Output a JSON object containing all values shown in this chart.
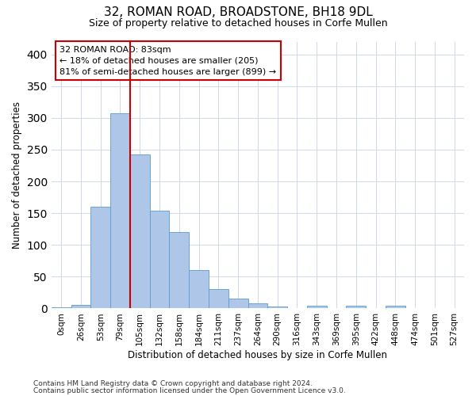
{
  "title": "32, ROMAN ROAD, BROADSTONE, BH18 9DL",
  "subtitle": "Size of property relative to detached houses in Corfe Mullen",
  "xlabel": "Distribution of detached houses by size in Corfe Mullen",
  "ylabel": "Number of detached properties",
  "footnote1": "Contains HM Land Registry data © Crown copyright and database right 2024.",
  "footnote2": "Contains public sector information licensed under the Open Government Licence v3.0.",
  "bar_labels": [
    "0sqm",
    "26sqm",
    "53sqm",
    "79sqm",
    "105sqm",
    "132sqm",
    "158sqm",
    "184sqm",
    "211sqm",
    "237sqm",
    "264sqm",
    "290sqm",
    "316sqm",
    "343sqm",
    "369sqm",
    "395sqm",
    "422sqm",
    "448sqm",
    "474sqm",
    "501sqm",
    "527sqm"
  ],
  "bar_heights": [
    2,
    6,
    160,
    307,
    243,
    154,
    120,
    61,
    31,
    15,
    8,
    3,
    0,
    4,
    0,
    4,
    0,
    4,
    0,
    0,
    0
  ],
  "bar_color": "#aec6e8",
  "bar_edge_color": "#5b9bd5",
  "vline_x": 3.5,
  "vline_color": "#cc0000",
  "ylim": [
    0,
    420
  ],
  "annotation_text": "32 ROMAN ROAD: 83sqm\n← 18% of detached houses are smaller (205)\n81% of semi-detached houses are larger (899) →",
  "annotation_box_color": "#ffffff",
  "annotation_box_edge_color": "#cc0000",
  "background_color": "#ffffff",
  "grid_color": "#d0d8e8"
}
